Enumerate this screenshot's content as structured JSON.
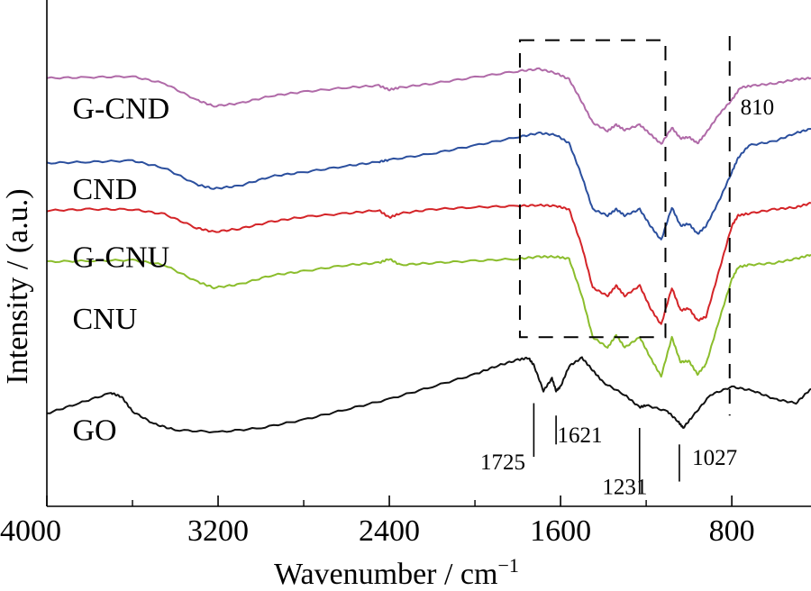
{
  "chart_data": {
    "type": "line",
    "xlabel": "Wavenumber / cm",
    "xlabel_sup": "−1",
    "ylabel": "Intensity / (a.u.)",
    "xlim": [
      4000,
      430
    ],
    "x_reversed": true,
    "xticks": [
      {
        "value": 4000,
        "label": "4000"
      },
      {
        "value": 3200,
        "label": "3200"
      },
      {
        "value": 2400,
        "label": "2400"
      },
      {
        "value": 1600,
        "label": "1600"
      },
      {
        "value": 800,
        "label": "800"
      }
    ],
    "minor_xticks": [
      3600,
      2800,
      2000,
      1200
    ],
    "yticks": "none",
    "series": [
      {
        "name": "G-CND",
        "color": "#b06aa8",
        "points": [
          [
            4000,
            0.958
          ],
          [
            3800,
            0.96
          ],
          [
            3600,
            0.962
          ],
          [
            3450,
            0.945
          ],
          [
            3300,
            0.905
          ],
          [
            3220,
            0.89
          ],
          [
            3100,
            0.897
          ],
          [
            2950,
            0.915
          ],
          [
            2800,
            0.925
          ],
          [
            2600,
            0.935
          ],
          [
            2450,
            0.94
          ],
          [
            2400,
            0.93
          ],
          [
            2350,
            0.935
          ],
          [
            2200,
            0.945
          ],
          [
            2000,
            0.96
          ],
          [
            1800,
            0.975
          ],
          [
            1700,
            0.98
          ],
          [
            1620,
            0.97
          ],
          [
            1560,
            0.955
          ],
          [
            1500,
            0.9
          ],
          [
            1450,
            0.85
          ],
          [
            1380,
            0.83
          ],
          [
            1340,
            0.845
          ],
          [
            1300,
            0.832
          ],
          [
            1230,
            0.845
          ],
          [
            1180,
            0.822
          ],
          [
            1130,
            0.798
          ],
          [
            1080,
            0.838
          ],
          [
            1040,
            0.812
          ],
          [
            1000,
            0.815
          ],
          [
            960,
            0.8
          ],
          [
            920,
            0.825
          ],
          [
            860,
            0.87
          ],
          [
            800,
            0.905
          ],
          [
            760,
            0.935
          ],
          [
            700,
            0.94
          ],
          [
            600,
            0.945
          ],
          [
            500,
            0.955
          ],
          [
            430,
            0.958
          ]
        ]
      },
      {
        "name": "CND",
        "color": "#2b4f9e",
        "points": [
          [
            4000,
            0.752
          ],
          [
            3800,
            0.755
          ],
          [
            3600,
            0.758
          ],
          [
            3450,
            0.74
          ],
          [
            3300,
            0.7
          ],
          [
            3220,
            0.69
          ],
          [
            3100,
            0.697
          ],
          [
            2950,
            0.72
          ],
          [
            2800,
            0.73
          ],
          [
            2600,
            0.745
          ],
          [
            2450,
            0.755
          ],
          [
            2400,
            0.76
          ],
          [
            2200,
            0.775
          ],
          [
            2000,
            0.795
          ],
          [
            1800,
            0.815
          ],
          [
            1700,
            0.825
          ],
          [
            1620,
            0.82
          ],
          [
            1560,
            0.8
          ],
          [
            1500,
            0.72
          ],
          [
            1450,
            0.64
          ],
          [
            1380,
            0.625
          ],
          [
            1340,
            0.64
          ],
          [
            1300,
            0.625
          ],
          [
            1230,
            0.64
          ],
          [
            1180,
            0.6
          ],
          [
            1130,
            0.565
          ],
          [
            1080,
            0.645
          ],
          [
            1040,
            0.6
          ],
          [
            1000,
            0.605
          ],
          [
            960,
            0.58
          ],
          [
            920,
            0.6
          ],
          [
            860,
            0.66
          ],
          [
            800,
            0.73
          ],
          [
            770,
            0.765
          ],
          [
            720,
            0.795
          ],
          [
            600,
            0.805
          ],
          [
            500,
            0.825
          ],
          [
            430,
            0.835
          ]
        ]
      },
      {
        "name": "G-CNU",
        "color": "#d42428",
        "points": [
          [
            4000,
            0.637
          ],
          [
            3800,
            0.64
          ],
          [
            3600,
            0.64
          ],
          [
            3450,
            0.628
          ],
          [
            3300,
            0.595
          ],
          [
            3220,
            0.585
          ],
          [
            3100,
            0.593
          ],
          [
            2950,
            0.61
          ],
          [
            2800,
            0.622
          ],
          [
            2600,
            0.63
          ],
          [
            2450,
            0.638
          ],
          [
            2400,
            0.62
          ],
          [
            2350,
            0.63
          ],
          [
            2200,
            0.64
          ],
          [
            2000,
            0.645
          ],
          [
            1800,
            0.648
          ],
          [
            1700,
            0.65
          ],
          [
            1620,
            0.648
          ],
          [
            1560,
            0.64
          ],
          [
            1500,
            0.55
          ],
          [
            1450,
            0.45
          ],
          [
            1380,
            0.43
          ],
          [
            1340,
            0.455
          ],
          [
            1300,
            0.43
          ],
          [
            1230,
            0.455
          ],
          [
            1180,
            0.4
          ],
          [
            1130,
            0.36
          ],
          [
            1080,
            0.45
          ],
          [
            1040,
            0.395
          ],
          [
            1000,
            0.4
          ],
          [
            960,
            0.37
          ],
          [
            920,
            0.38
          ],
          [
            860,
            0.49
          ],
          [
            800,
            0.6
          ],
          [
            770,
            0.625
          ],
          [
            720,
            0.63
          ],
          [
            600,
            0.64
          ],
          [
            500,
            0.645
          ],
          [
            430,
            0.655
          ]
        ]
      },
      {
        "name": "CNU",
        "color": "#8bbd2c",
        "points": [
          [
            4000,
            0.513
          ],
          [
            3800,
            0.515
          ],
          [
            3600,
            0.517
          ],
          [
            3450,
            0.505
          ],
          [
            3300,
            0.465
          ],
          [
            3220,
            0.45
          ],
          [
            3100,
            0.458
          ],
          [
            2950,
            0.48
          ],
          [
            2800,
            0.49
          ],
          [
            2600,
            0.505
          ],
          [
            2450,
            0.51
          ],
          [
            2400,
            0.52
          ],
          [
            2350,
            0.505
          ],
          [
            2200,
            0.51
          ],
          [
            2000,
            0.515
          ],
          [
            1800,
            0.52
          ],
          [
            1700,
            0.525
          ],
          [
            1620,
            0.525
          ],
          [
            1560,
            0.52
          ],
          [
            1500,
            0.43
          ],
          [
            1450,
            0.33
          ],
          [
            1380,
            0.305
          ],
          [
            1340,
            0.335
          ],
          [
            1300,
            0.305
          ],
          [
            1230,
            0.33
          ],
          [
            1180,
            0.28
          ],
          [
            1130,
            0.235
          ],
          [
            1080,
            0.33
          ],
          [
            1040,
            0.27
          ],
          [
            1000,
            0.272
          ],
          [
            960,
            0.24
          ],
          [
            920,
            0.265
          ],
          [
            860,
            0.37
          ],
          [
            800,
            0.47
          ],
          [
            770,
            0.5
          ],
          [
            720,
            0.505
          ],
          [
            600,
            0.51
          ],
          [
            500,
            0.52
          ],
          [
            430,
            0.53
          ]
        ]
      },
      {
        "name": "GO",
        "color": "#111111",
        "points": [
          [
            4000,
            0.145
          ],
          [
            3850,
            0.17
          ],
          [
            3700,
            0.195
          ],
          [
            3650,
            0.185
          ],
          [
            3600,
            0.15
          ],
          [
            3500,
            0.12
          ],
          [
            3400,
            0.105
          ],
          [
            3200,
            0.1
          ],
          [
            3000,
            0.11
          ],
          [
            2800,
            0.13
          ],
          [
            2600,
            0.155
          ],
          [
            2400,
            0.18
          ],
          [
            2200,
            0.21
          ],
          [
            2000,
            0.24
          ],
          [
            1900,
            0.26
          ],
          [
            1800,
            0.275
          ],
          [
            1750,
            0.28
          ],
          [
            1725,
            0.262
          ],
          [
            1680,
            0.2
          ],
          [
            1640,
            0.23
          ],
          [
            1621,
            0.2
          ],
          [
            1600,
            0.21
          ],
          [
            1560,
            0.26
          ],
          [
            1500,
            0.28
          ],
          [
            1450,
            0.25
          ],
          [
            1400,
            0.22
          ],
          [
            1300,
            0.19
          ],
          [
            1231,
            0.16
          ],
          [
            1200,
            0.165
          ],
          [
            1100,
            0.15
          ],
          [
            1050,
            0.125
          ],
          [
            1027,
            0.11
          ],
          [
            980,
            0.14
          ],
          [
            900,
            0.19
          ],
          [
            800,
            0.21
          ],
          [
            700,
            0.2
          ],
          [
            600,
            0.18
          ],
          [
            500,
            0.17
          ],
          [
            430,
            0.205
          ]
        ]
      }
    ],
    "series_labels": [
      {
        "text": "G-CND",
        "x": 3880,
        "y": 0.86
      },
      {
        "text": "CND",
        "x": 3880,
        "y": 0.665
      },
      {
        "text": "G-CNU",
        "x": 3880,
        "y": 0.5
      },
      {
        "text": "CNU",
        "x": 3880,
        "y": 0.35
      },
      {
        "text": "GO",
        "x": 3880,
        "y": 0.08
      }
    ],
    "dashed_box": {
      "x_from": 1790,
      "x_to": 1110,
      "y_from": 0.33,
      "y_to": 1.05
    },
    "dashed_line_810": {
      "x": 810,
      "y_from": 0.14,
      "y_to": 1.06
    },
    "annotations": [
      {
        "text": "810",
        "x": 760,
        "y": 0.87,
        "anchor": "start"
      },
      {
        "text": "1725",
        "x": 1725,
        "line_from": 0.17,
        "line_to": 0.04,
        "label_x": 1870,
        "label_y": 0.01,
        "anchor": "middle"
      },
      {
        "text": "1621",
        "x": 1621,
        "line_from": 0.14,
        "line_to": 0.07,
        "label_x": 1510,
        "label_y": 0.075,
        "anchor": "middle"
      },
      {
        "text": "1231",
        "x": 1231,
        "line_from": 0.11,
        "line_to": -0.05,
        "label_x": 1300,
        "label_y": -0.05,
        "anchor": "middle"
      },
      {
        "text": "1027",
        "x": 1045,
        "line_from": 0.07,
        "line_to": -0.02,
        "label_x": 880,
        "label_y": 0.02,
        "anchor": "middle"
      }
    ]
  }
}
